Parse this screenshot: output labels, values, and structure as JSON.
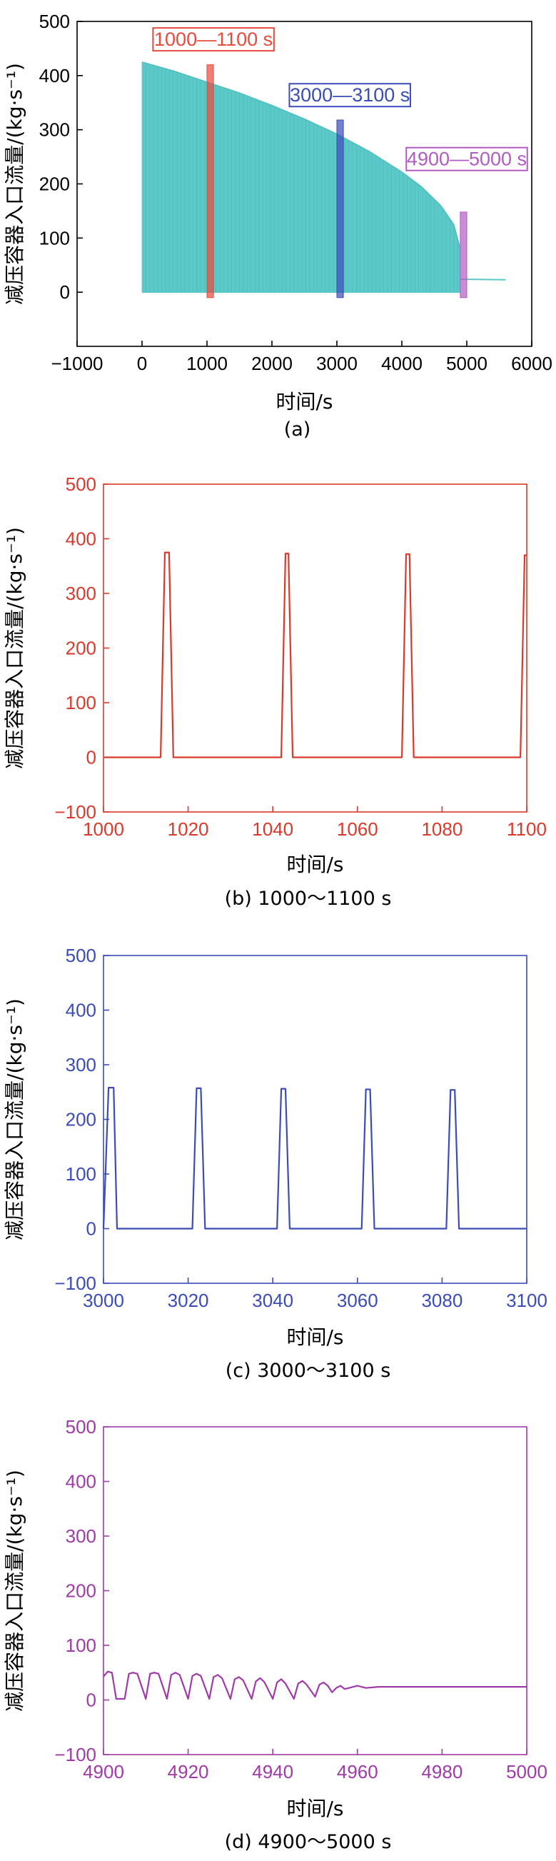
{
  "chart_data": [
    {
      "id": "a",
      "type": "area",
      "caption": "(a)",
      "xlabel": "时间/s",
      "ylabel": "减压容器入口流量/(kg·s⁻¹)",
      "xlim": [
        -1000,
        6000
      ],
      "ylim": [
        -100,
        500
      ],
      "xticks": [
        -1000,
        0,
        1000,
        2000,
        3000,
        4000,
        5000,
        6000
      ],
      "yticks": [
        0,
        100,
        200,
        300,
        400,
        500
      ],
      "color": "#5cc9c9",
      "axis_color": "#000000",
      "series": [
        {
          "envelope": [
            [
              0,
              425
            ],
            [
              500,
              408
            ],
            [
              1000,
              388
            ],
            [
              1500,
              368
            ],
            [
              2000,
              345
            ],
            [
              2500,
              320
            ],
            [
              3000,
              292
            ],
            [
              3500,
              260
            ],
            [
              4000,
              222
            ],
            [
              4300,
              195
            ],
            [
              4600,
              160
            ],
            [
              4800,
              125
            ],
            [
              4900,
              80
            ]
          ],
          "tail": [
            [
              4900,
              24
            ],
            [
              5600,
              23
            ]
          ]
        }
      ],
      "highlights": [
        {
          "label": "1000—1100 s",
          "x": [
            1000,
            1100
          ],
          "y": [
            -10,
            420
          ],
          "color": "#e84a3c",
          "label_pos": [
            1100,
            455
          ]
        },
        {
          "label": "3000—3100 s",
          "x": [
            3000,
            3100
          ],
          "y": [
            -10,
            318
          ],
          "color": "#3b4cb8",
          "label_pos": [
            3200,
            352
          ]
        },
        {
          "label": "4900—5000 s",
          "x": [
            4900,
            5000
          ],
          "y": [
            -10,
            148
          ],
          "color": "#b05cc2",
          "label_pos": [
            5000,
            234
          ]
        }
      ]
    },
    {
      "id": "b",
      "type": "line",
      "caption": "(b) 1000～1100 s",
      "xlabel": "时间/s",
      "ylabel": "减压容器入口流量/(kg·s⁻¹)",
      "xlim": [
        1000,
        1100
      ],
      "ylim": [
        -100,
        500
      ],
      "xticks": [
        1000,
        1020,
        1040,
        1060,
        1080,
        1100
      ],
      "yticks": [
        -100,
        0,
        100,
        200,
        300,
        400,
        500
      ],
      "color": "#d93a2b",
      "axis_color": "#d93a2b",
      "series": [
        {
          "x": [
            1000,
            1013.5,
            1014.5,
            1015.5,
            1016.5,
            1042,
            1043,
            1043.7,
            1044.7,
            1070.5,
            1071.5,
            1072.3,
            1073.3,
            1098.5,
            1099.5,
            1100
          ],
          "y": [
            0,
            0,
            375,
            375,
            0,
            0,
            373,
            373,
            0,
            0,
            372,
            372,
            0,
            0,
            370,
            370
          ]
        }
      ]
    },
    {
      "id": "c",
      "type": "line",
      "caption": "(c) 3000～3100 s",
      "xlabel": "时间/s",
      "ylabel": "减压容器入口流量/(kg·s⁻¹)",
      "xlim": [
        3000,
        3100
      ],
      "ylim": [
        -100,
        500
      ],
      "xticks": [
        3000,
        3020,
        3040,
        3060,
        3080,
        3100
      ],
      "yticks": [
        -100,
        0,
        100,
        200,
        300,
        400,
        500
      ],
      "color": "#3b4cb8",
      "axis_color": "#3b4cb8",
      "series": [
        {
          "x": [
            3000,
            3001.2,
            3002.4,
            3003.2,
            3021,
            3022,
            3023,
            3024,
            3041,
            3042,
            3043,
            3044,
            3061,
            3062,
            3063,
            3064,
            3081,
            3082,
            3083,
            3084,
            3100
          ],
          "y": [
            0,
            258,
            258,
            0,
            0,
            257,
            257,
            0,
            0,
            256,
            256,
            0,
            0,
            255,
            255,
            0,
            0,
            254,
            254,
            0,
            0
          ]
        }
      ]
    },
    {
      "id": "d",
      "type": "line",
      "caption": "(d) 4900～5000 s",
      "xlabel": "时间/s",
      "ylabel": "减压容器入口流量/(kg·s⁻¹)",
      "xlim": [
        4900,
        5000
      ],
      "ylim": [
        -100,
        500
      ],
      "xticks": [
        4900,
        4920,
        4940,
        4960,
        4980,
        5000
      ],
      "yticks": [
        -100,
        0,
        100,
        200,
        300,
        400,
        500
      ],
      "color": "#a03aa8",
      "axis_color": "#a03aa8",
      "series": [
        {
          "x": [
            4900,
            4901,
            4902,
            4903,
            4905,
            4906,
            4907,
            4908,
            4910,
            4911,
            4912,
            4913,
            4915,
            4916,
            4917,
            4918,
            4920,
            4921,
            4922,
            4923,
            4925,
            4926,
            4927,
            4928,
            4930,
            4931,
            4932,
            4933,
            4935,
            4936,
            4937,
            4938,
            4940,
            4941,
            4942,
            4943,
            4945,
            4946,
            4947,
            4948,
            4950,
            4951,
            4952,
            4953,
            4954,
            4955,
            4956,
            4957,
            4958,
            4960,
            4962,
            4965,
            4970,
            4980,
            5000
          ],
          "y": [
            43,
            52,
            50,
            2,
            2,
            48,
            50,
            48,
            2,
            48,
            50,
            48,
            2,
            46,
            50,
            46,
            2,
            44,
            48,
            44,
            2,
            42,
            46,
            40,
            2,
            38,
            42,
            36,
            2,
            34,
            40,
            33,
            2,
            32,
            38,
            30,
            2,
            30,
            35,
            28,
            6,
            28,
            32,
            26,
            14,
            22,
            26,
            20,
            22,
            26,
            22,
            24,
            24,
            24,
            24
          ]
        }
      ]
    }
  ]
}
